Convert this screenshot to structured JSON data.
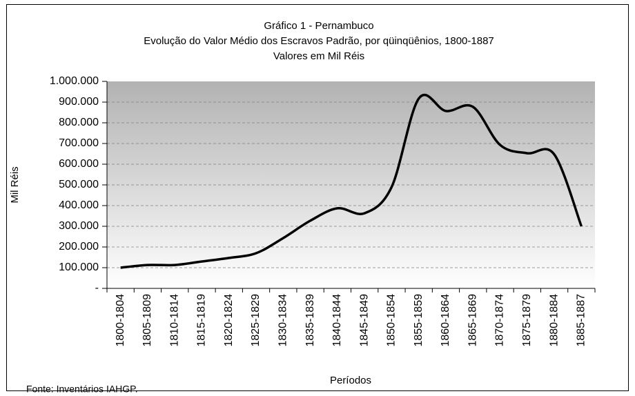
{
  "chart_data": {
    "type": "line",
    "title": "Gráfico 1 - Pernambuco",
    "subtitle": "Evolução do Valor Médio dos Escravos Padrão, por qüinqüênios, 1800-1887",
    "subtitle2": "Valores em Mil Réis",
    "y_label": "Mil Réis",
    "x_label": "Períodos",
    "source": "Fonte: Inventários IAHGP.",
    "categories": [
      "1800-1804",
      "1805-1809",
      "1810-1814",
      "1815-1819",
      "1820-1824",
      "1825-1829",
      "1830-1834",
      "1835-1839",
      "1840-1844",
      "1845-1849",
      "1850-1854",
      "1855-1859",
      "1860-1864",
      "1865-1869",
      "1870-1874",
      "1875-1879",
      "1880-1884",
      "1885-1887"
    ],
    "values": [
      100000,
      113000,
      113000,
      130000,
      147000,
      170000,
      243000,
      327000,
      387000,
      363000,
      490000,
      917000,
      857000,
      877000,
      693000,
      653000,
      647000,
      300000
    ],
    "color": "#000000",
    "ylim": [
      0,
      1000000
    ],
    "yticks": [
      {
        "value": 0,
        "label": "-"
      },
      {
        "value": 100000,
        "label": "100.000"
      },
      {
        "value": 200000,
        "label": "200.000"
      },
      {
        "value": 300000,
        "label": "300.000"
      },
      {
        "value": 400000,
        "label": "400.000"
      },
      {
        "value": 500000,
        "label": "500.000"
      },
      {
        "value": 600000,
        "label": "600.000"
      },
      {
        "value": 700000,
        "label": "700.000"
      },
      {
        "value": 800000,
        "label": "800.000"
      },
      {
        "value": 900000,
        "label": "900.000"
      },
      {
        "value": 1000000,
        "label": "1.000.000"
      }
    ],
    "grid": true
  }
}
